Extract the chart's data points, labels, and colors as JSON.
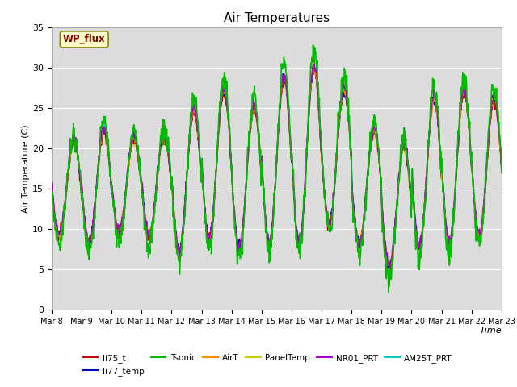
{
  "title": "Air Temperatures",
  "xlabel": "Time",
  "ylabel": "Air Temperature (C)",
  "ylim": [
    0,
    35
  ],
  "yticks": [
    0,
    5,
    10,
    15,
    20,
    25,
    30,
    35
  ],
  "plot_bg_color": "#dcdcdc",
  "series": {
    "li75_t": {
      "color": "#cc0000",
      "lw": 1.0,
      "zorder": 4
    },
    "li77_temp": {
      "color": "#0000cc",
      "lw": 1.0,
      "zorder": 4
    },
    "Tsonic": {
      "color": "#00bb00",
      "lw": 1.2,
      "zorder": 5
    },
    "AirT": {
      "color": "#ff8800",
      "lw": 1.0,
      "zorder": 4
    },
    "PanelTemp": {
      "color": "#cccc00",
      "lw": 1.0,
      "zorder": 3
    },
    "NR01_PRT": {
      "color": "#aa00cc",
      "lw": 1.0,
      "zorder": 4
    },
    "AM25T_PRT": {
      "color": "#00cccc",
      "lw": 1.2,
      "zorder": 3
    }
  },
  "xtick_labels": [
    "Mar 8",
    "Mar 9",
    "Mar 10",
    "Mar 11",
    "Mar 12",
    "Mar 13",
    "Mar 14",
    "Mar 15",
    "Mar 16",
    "Mar 17",
    "Mar 18",
    "Mar 19",
    "Mar 20",
    "Mar 21",
    "Mar 22",
    "Mar 23"
  ],
  "wp_flux_label": "WP_flux",
  "wp_flux_color": "#880000",
  "wp_flux_bg": "#ffffcc",
  "wp_flux_border": "#888800",
  "day_mins": [
    9.0,
    8.0,
    9.5,
    9.0,
    7.0,
    8.5,
    7.5,
    8.0,
    8.0,
    10.5,
    8.0,
    5.0,
    7.5,
    8.0,
    9.0
  ],
  "day_maxes": [
    21.0,
    22.5,
    21.5,
    22.0,
    25.0,
    27.5,
    25.5,
    29.0,
    30.5,
    27.5,
    22.5,
    20.5,
    26.5,
    27.5,
    26.5
  ]
}
